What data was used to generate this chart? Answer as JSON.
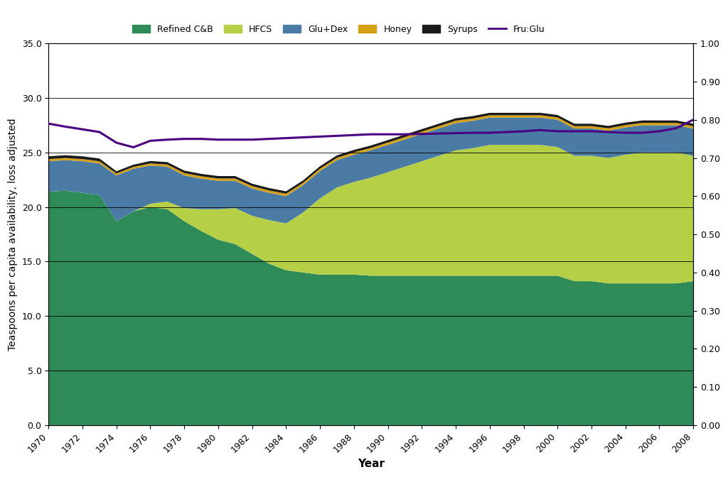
{
  "years": [
    1970,
    1971,
    1972,
    1973,
    1974,
    1975,
    1976,
    1977,
    1978,
    1979,
    1980,
    1981,
    1982,
    1983,
    1984,
    1985,
    1986,
    1987,
    1988,
    1989,
    1990,
    1991,
    1992,
    1993,
    1994,
    1995,
    1996,
    1997,
    1998,
    1999,
    2000,
    2001,
    2002,
    2003,
    2004,
    2005,
    2006,
    2007,
    2008
  ],
  "refined_cb": [
    21.4,
    21.5,
    21.3,
    21.1,
    18.7,
    19.6,
    20.0,
    19.8,
    18.7,
    17.8,
    17.0,
    16.6,
    15.7,
    14.8,
    14.2,
    14.0,
    13.8,
    13.8,
    13.8,
    13.7,
    13.7,
    13.7,
    13.7,
    13.7,
    13.7,
    13.7,
    13.7,
    13.7,
    13.7,
    13.7,
    13.7,
    13.2,
    13.2,
    13.0,
    13.0,
    13.0,
    13.0,
    13.0,
    13.2
  ],
  "hfcs": [
    0.0,
    0.0,
    0.0,
    0.0,
    0.0,
    0.0,
    0.3,
    0.7,
    1.2,
    2.0,
    2.8,
    3.3,
    3.5,
    4.0,
    4.3,
    5.5,
    7.0,
    8.0,
    8.5,
    9.0,
    9.5,
    10.0,
    10.5,
    11.0,
    11.5,
    11.7,
    12.0,
    12.0,
    12.0,
    12.0,
    11.8,
    11.5,
    11.5,
    11.5,
    11.8,
    12.0,
    12.0,
    12.0,
    11.5
  ],
  "glu_dex": [
    2.8,
    2.8,
    2.9,
    2.9,
    4.2,
    3.9,
    3.5,
    3.2,
    3.0,
    2.8,
    2.6,
    2.5,
    2.5,
    2.5,
    2.5,
    2.5,
    2.5,
    2.5,
    2.5,
    2.5,
    2.5,
    2.5,
    2.5,
    2.5,
    2.5,
    2.5,
    2.5,
    2.5,
    2.5,
    2.5,
    2.5,
    2.5,
    2.5,
    2.5,
    2.5,
    2.5,
    2.5,
    2.5,
    2.5
  ],
  "honey": [
    0.2,
    0.2,
    0.2,
    0.2,
    0.18,
    0.18,
    0.2,
    0.2,
    0.22,
    0.22,
    0.22,
    0.22,
    0.22,
    0.22,
    0.22,
    0.22,
    0.22,
    0.22,
    0.22,
    0.22,
    0.22,
    0.22,
    0.22,
    0.22,
    0.22,
    0.22,
    0.22,
    0.22,
    0.22,
    0.22,
    0.22,
    0.22,
    0.22,
    0.22,
    0.22,
    0.22,
    0.22,
    0.22,
    0.22
  ],
  "syrups": [
    0.25,
    0.25,
    0.25,
    0.25,
    0.2,
    0.2,
    0.22,
    0.22,
    0.22,
    0.22,
    0.22,
    0.22,
    0.22,
    0.22,
    0.22,
    0.22,
    0.22,
    0.22,
    0.22,
    0.22,
    0.22,
    0.22,
    0.22,
    0.22,
    0.22,
    0.22,
    0.22,
    0.22,
    0.22,
    0.22,
    0.22,
    0.22,
    0.22,
    0.22,
    0.22,
    0.22,
    0.22,
    0.22,
    0.22
  ],
  "fru_glu": [
    0.79,
    0.782,
    0.775,
    0.768,
    0.74,
    0.728,
    0.745,
    0.748,
    0.75,
    0.75,
    0.748,
    0.748,
    0.748,
    0.75,
    0.752,
    0.754,
    0.756,
    0.758,
    0.76,
    0.762,
    0.762,
    0.762,
    0.763,
    0.764,
    0.765,
    0.766,
    0.766,
    0.768,
    0.77,
    0.773,
    0.77,
    0.77,
    0.77,
    0.768,
    0.766,
    0.766,
    0.77,
    0.778,
    0.8
  ],
  "color_refined_cb": "#2e8b57",
  "color_hfcs": "#b5cf46",
  "color_glu_dex": "#4a7ba4",
  "color_honey": "#d4a017",
  "color_syrups": "#1a1a1a",
  "color_fru_glu": "#4b0082",
  "ylabel_left": "Teaspoons per capita availability, loss adjusted",
  "xlabel": "Year",
  "ylim_left": [
    0.0,
    35.0
  ],
  "ylim_right": [
    0.0,
    1.0
  ],
  "yticks_left": [
    0.0,
    5.0,
    10.0,
    15.0,
    20.0,
    25.0,
    30.0,
    35.0
  ],
  "yticks_right": [
    0.0,
    0.1,
    0.2,
    0.3,
    0.4,
    0.5,
    0.6,
    0.7,
    0.8,
    0.9,
    1.0
  ],
  "background_color": "#ffffff"
}
